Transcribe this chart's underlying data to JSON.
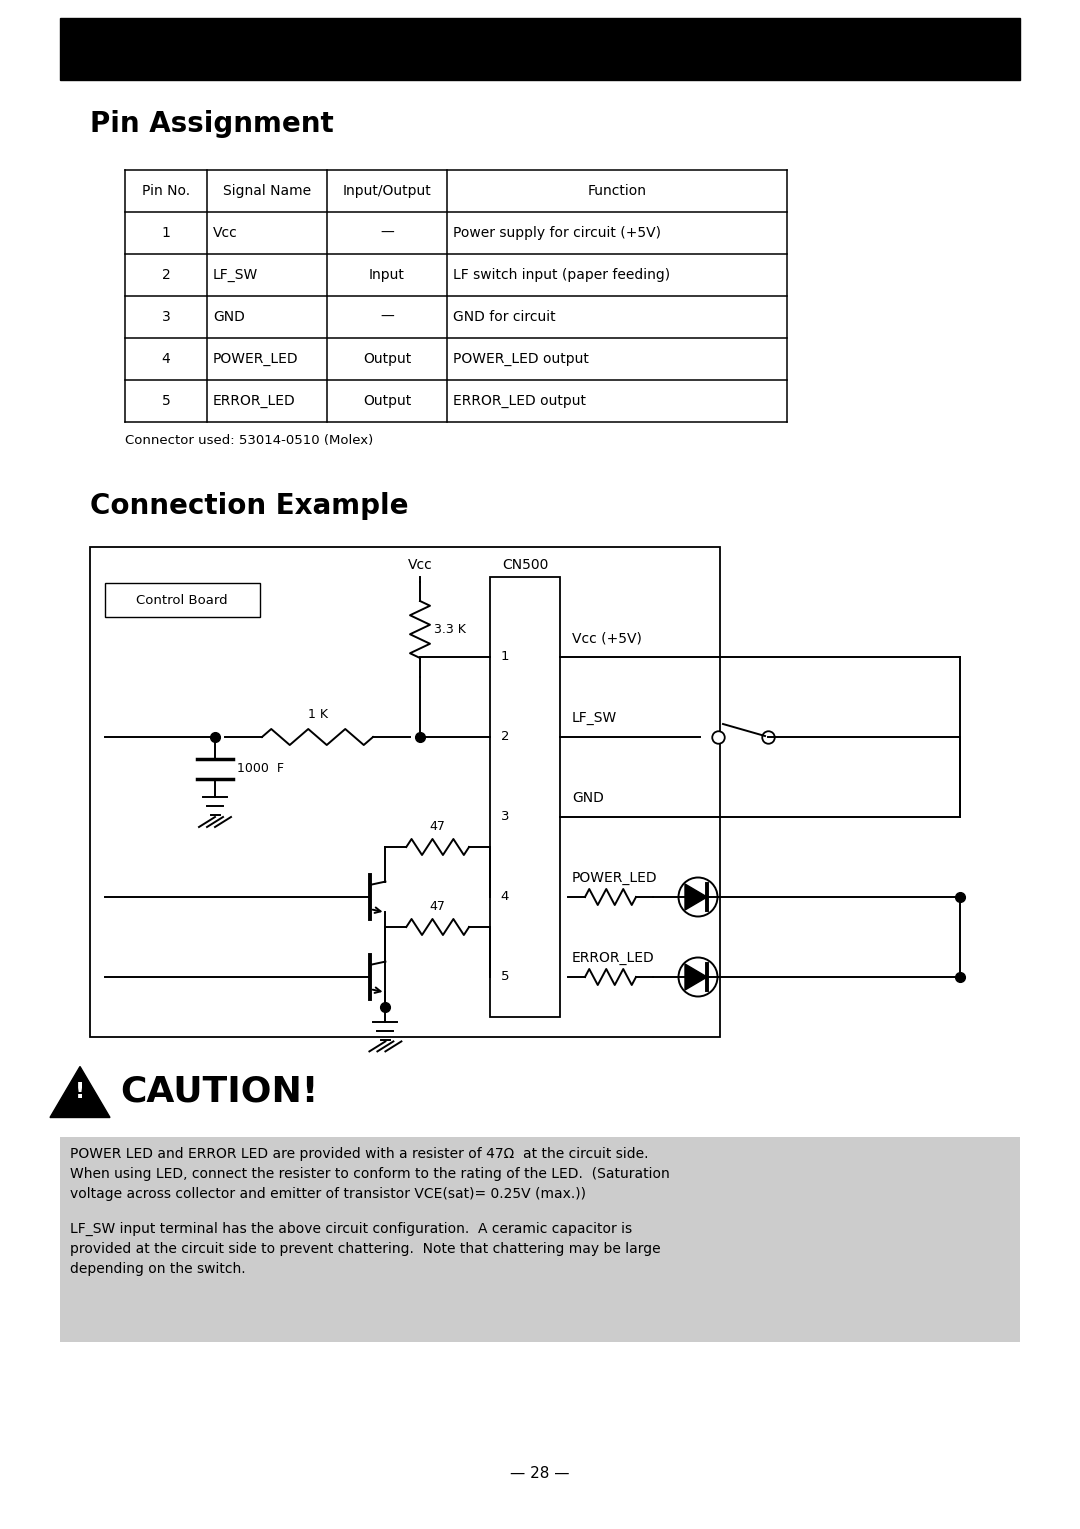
{
  "bg": "#ffffff",
  "section1": "Pin Assignment",
  "section2": "Connection Example",
  "table_headers": [
    "Pin No.",
    "Signal Name",
    "Input/Output",
    "Function"
  ],
  "table_rows": [
    [
      "1",
      "Vcc",
      "—",
      "Power supply for circuit (+5V)"
    ],
    [
      "2",
      "LF_SW",
      "Input",
      "LF switch input (paper feeding)"
    ],
    [
      "3",
      "GND",
      "—",
      "GND for circuit"
    ],
    [
      "4",
      "POWER_LED",
      "Output",
      "POWER_LED output"
    ],
    [
      "5",
      "ERROR_LED",
      "Output",
      "ERROR_LED output"
    ]
  ],
  "connector_note": "Connector used: 53014-0510 (Molex)",
  "caution_heading": "CAUTION!",
  "caution_para1": "POWER LED and ERROR LED are provided with a resister of 47Ω  at the circuit side.\nWhen using LED, connect the resister to conform to the rating of the LED.  (Saturation\nvoltage across collector and emitter of transistor VCE(sat)= 0.25V (max.))",
  "caution_para2": "LF_SW input terminal has the above circuit configuration.  A ceramic capacitor is\nprovided at the circuit side to prevent chattering.  Note that chattering may be large\ndepending on the switch.",
  "page_num": "— 28 —",
  "caution_bg": "#cccccc"
}
